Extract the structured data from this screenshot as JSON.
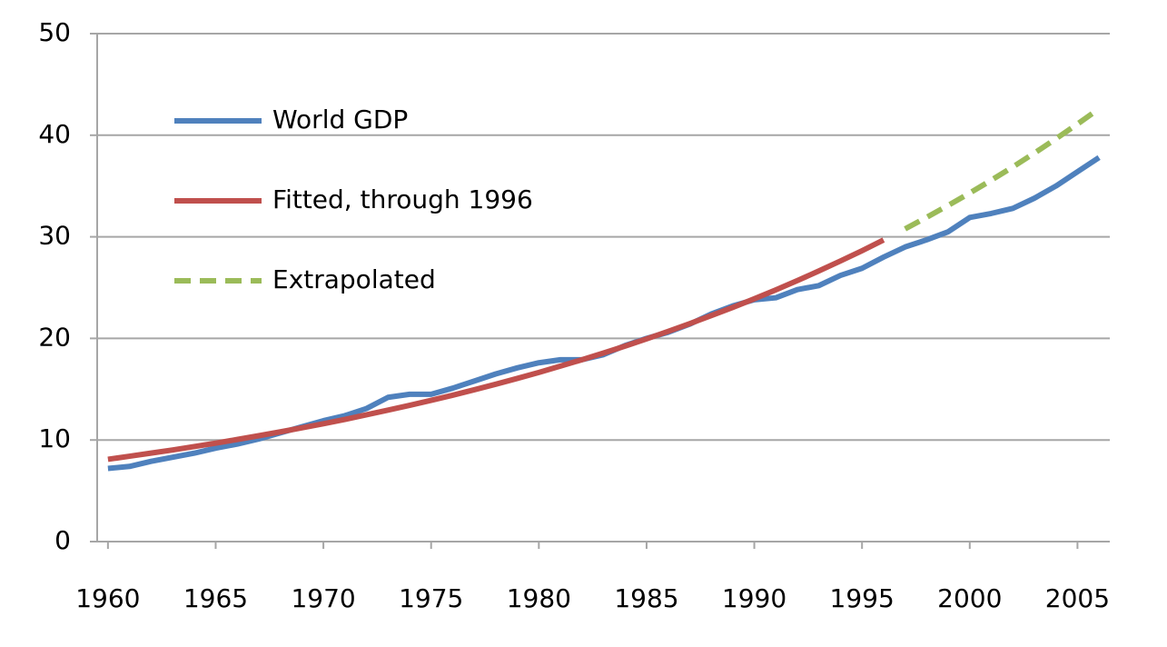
{
  "chart_data": {
    "type": "line",
    "x": [
      1960,
      1961,
      1962,
      1963,
      1964,
      1965,
      1966,
      1967,
      1968,
      1969,
      1970,
      1971,
      1972,
      1973,
      1974,
      1975,
      1976,
      1977,
      1978,
      1979,
      1980,
      1981,
      1982,
      1983,
      1984,
      1985,
      1986,
      1987,
      1988,
      1989,
      1990,
      1991,
      1992,
      1993,
      1994,
      1995,
      1996,
      1997,
      1998,
      1999,
      2000,
      2001,
      2002,
      2003,
      2004,
      2005,
      2006
    ],
    "series": [
      {
        "name": "World GDP",
        "color": "#4f81bd",
        "style": "solid",
        "values": [
          7.2,
          7.4,
          7.9,
          8.3,
          8.7,
          9.2,
          9.6,
          10.1,
          10.7,
          11.3,
          11.9,
          12.4,
          13.1,
          14.2,
          14.5,
          14.5,
          15.1,
          15.8,
          16.5,
          17.1,
          17.6,
          17.9,
          17.9,
          18.4,
          19.3,
          20.0,
          20.6,
          21.4,
          22.4,
          23.2,
          23.8,
          24.0,
          24.8,
          25.2,
          26.2,
          26.9,
          28.0,
          29.0,
          29.7,
          30.5,
          31.9,
          32.3,
          32.8,
          33.8,
          35.0,
          36.4,
          37.8
        ]
      },
      {
        "name": "Fitted, through 1996",
        "color": "#c0504d",
        "style": "solid",
        "values": [
          8.1,
          8.4,
          8.71,
          9.02,
          9.35,
          9.69,
          10.05,
          10.42,
          10.8,
          11.2,
          11.6,
          12.03,
          12.48,
          12.94,
          13.41,
          13.9,
          14.41,
          14.94,
          15.49,
          16.06,
          16.65,
          17.27,
          17.9,
          18.56,
          19.24,
          19.95,
          20.69,
          21.45,
          22.24,
          23.05,
          23.9,
          24.78,
          25.69,
          26.64,
          27.62,
          28.63,
          29.69,
          null,
          null,
          null,
          null,
          null,
          null,
          null,
          null,
          null,
          null
        ]
      },
      {
        "name": "Extrapolated",
        "color": "#9bbb59",
        "style": "dashed",
        "values": [
          null,
          null,
          null,
          null,
          null,
          null,
          null,
          null,
          null,
          null,
          null,
          null,
          null,
          null,
          null,
          null,
          null,
          null,
          null,
          null,
          null,
          null,
          null,
          null,
          null,
          null,
          null,
          null,
          null,
          null,
          null,
          null,
          null,
          null,
          null,
          null,
          null,
          30.78,
          31.92,
          33.09,
          34.31,
          35.57,
          36.88,
          38.24,
          39.65,
          41.1,
          42.6
        ]
      }
    ],
    "xlim": [
      1959.5,
      2006.5
    ],
    "xticks": [
      1960,
      1965,
      1970,
      1975,
      1980,
      1985,
      1990,
      1995,
      2000,
      2005
    ],
    "ylim": [
      0,
      50
    ],
    "yticks": [
      0,
      10,
      20,
      30,
      40,
      50
    ],
    "grid": true,
    "legend": "upper left"
  }
}
